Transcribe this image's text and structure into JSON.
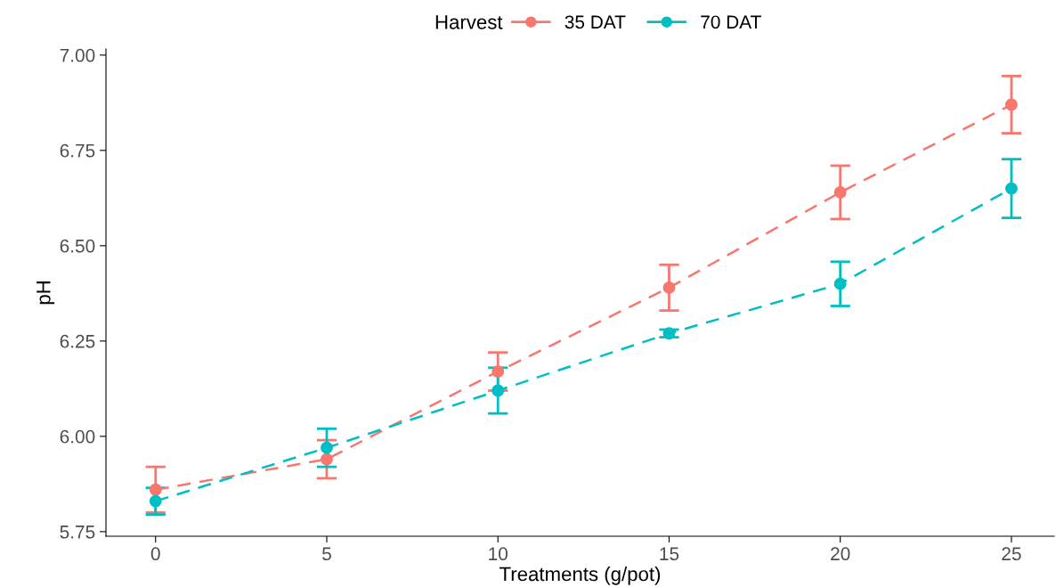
{
  "chart_data": {
    "type": "line",
    "xlabel": "Treatments (g/pot)",
    "ylabel": "pH",
    "legend_title": "Harvest",
    "x": [
      0,
      5,
      10,
      15,
      20,
      25
    ],
    "series": [
      {
        "name": "35 DAT",
        "color": "#f8766d",
        "values": [
          5.86,
          5.94,
          6.17,
          6.39,
          6.64,
          6.87
        ],
        "errors": [
          0.06,
          0.05,
          0.05,
          0.06,
          0.07,
          0.075
        ]
      },
      {
        "name": "70 DAT",
        "color": "#00bfc4",
        "values": [
          5.83,
          5.97,
          6.12,
          6.27,
          6.4,
          6.65
        ],
        "errors": [
          0.035,
          0.05,
          0.06,
          0.01,
          0.058,
          0.077
        ]
      }
    ],
    "xlim": [
      -1.45,
      26.25
    ],
    "ylim": [
      5.738,
      7.016
    ],
    "xticks": [
      0,
      5,
      10,
      15,
      20,
      25
    ],
    "yticks": [
      {
        "value": 5.75,
        "label": "5.75"
      },
      {
        "value": 6.0,
        "label": "6.00"
      },
      {
        "value": 6.25,
        "label": "6.25"
      },
      {
        "value": 6.5,
        "label": "6.50"
      },
      {
        "value": 6.75,
        "label": "6.75"
      },
      {
        "value": 7.0,
        "label": "7.00"
      }
    ],
    "grid": false,
    "legend": "top",
    "marker": "circle",
    "line_style": "dashed"
  }
}
